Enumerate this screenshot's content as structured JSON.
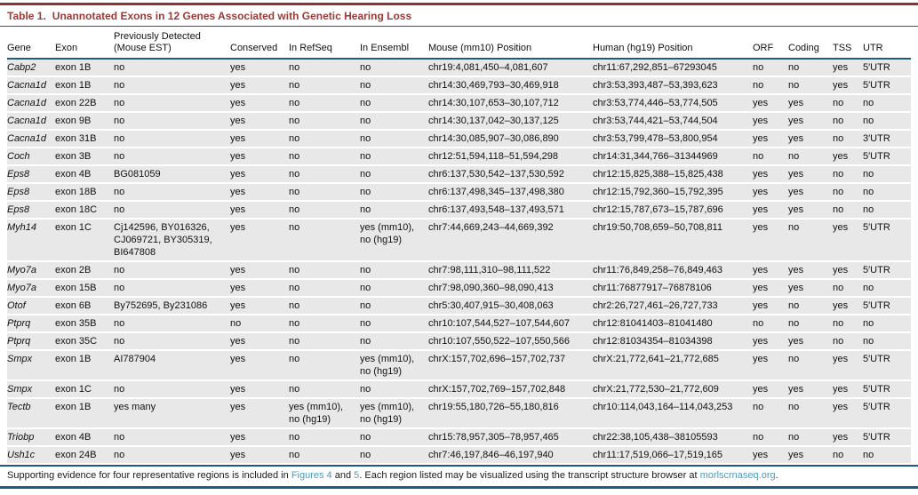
{
  "title": {
    "label": "Table 1.",
    "text": "Unannotated Exons in 12 Genes Associated with Genetic Hearing Loss"
  },
  "table": {
    "columns": [
      "Gene",
      "Exon",
      "Previously Detected (Mouse EST)",
      "Conserved",
      "In RefSeq",
      "In Ensembl",
      "Mouse (mm10) Position",
      "Human (hg19) Position",
      "ORF",
      "Coding",
      "TSS",
      "UTR"
    ],
    "column_keys": [
      "gene",
      "exon",
      "prev-detected",
      "conserved",
      "in-refseq",
      "in-ensembl",
      "mouse-position",
      "human-position",
      "orf",
      "coding",
      "tss",
      "utr"
    ],
    "rows": [
      [
        "Cabp2",
        "exon 1B",
        "no",
        "yes",
        "no",
        "no",
        "chr19:4,081,450–4,081,607",
        "chr11:67,292,851–67293045",
        "no",
        "no",
        "yes",
        "5′UTR"
      ],
      [
        "Cacna1d",
        "exon 1B",
        "no",
        "yes",
        "no",
        "no",
        "chr14:30,469,793–30,469,918",
        "chr3:53,393,487–53,393,623",
        "no",
        "no",
        "yes",
        "5′UTR"
      ],
      [
        "Cacna1d",
        "exon 22B",
        "no",
        "yes",
        "no",
        "no",
        "chr14:30,107,653–30,107,712",
        "chr3:53,774,446–53,774,505",
        "yes",
        "yes",
        "no",
        "no"
      ],
      [
        "Cacna1d",
        "exon 9B",
        "no",
        "yes",
        "no",
        "no",
        "chr14:30,137,042–30,137,125",
        "chr3:53,744,421–53,744,504",
        "yes",
        "yes",
        "no",
        "no"
      ],
      [
        "Cacna1d",
        "exon 31B",
        "no",
        "yes",
        "no",
        "no",
        "chr14:30,085,907–30,086,890",
        "chr3:53,799,478–53,800,954",
        "yes",
        "yes",
        "no",
        "3′UTR"
      ],
      [
        "Coch",
        "exon 3B",
        "no",
        "yes",
        "no",
        "no",
        "chr12:51,594,118–51,594,298",
        "chr14:31,344,766–31344969",
        "no",
        "no",
        "yes",
        "5′UTR"
      ],
      [
        "Eps8",
        "exon 4B",
        "BG081059",
        "yes",
        "no",
        "no",
        "chr6:137,530,542–137,530,592",
        "chr12:15,825,388–15,825,438",
        "yes",
        "yes",
        "no",
        "no"
      ],
      [
        "Eps8",
        "exon 18B",
        "no",
        "yes",
        "no",
        "no",
        "chr6:137,498,345–137,498,380",
        "chr12:15,792,360–15,792,395",
        "yes",
        "yes",
        "no",
        "no"
      ],
      [
        "Eps8",
        "exon 18C",
        "no",
        "yes",
        "no",
        "no",
        "chr6:137,493,548–137,493,571",
        "chr12:15,787,673–15,787,696",
        "yes",
        "yes",
        "no",
        "no"
      ],
      [
        "Myh14",
        "exon 1C",
        "Cj142596, BY016326, CJ069721, BY305319, BI647808",
        "yes",
        "no",
        "yes (mm10), no (hg19)",
        "chr7:44,669,243–44,669,392",
        "chr19:50,708,659–50,708,811",
        "yes",
        "no",
        "yes",
        "5′UTR"
      ],
      [
        "Myo7a",
        "exon 2B",
        "no",
        "yes",
        "no",
        "no",
        "chr7:98,111,310–98,111,522",
        "chr11:76,849,258–76,849,463",
        "yes",
        "yes",
        "yes",
        "5′UTR"
      ],
      [
        "Myo7a",
        "exon 15B",
        "no",
        "yes",
        "no",
        "no",
        "chr7:98,090,360–98,090,413",
        "chr11:76877917–76878106",
        "yes",
        "yes",
        "no",
        "no"
      ],
      [
        "Otof",
        "exon 6B",
        "By752695, By231086",
        "yes",
        "no",
        "no",
        "chr5:30,407,915–30,408,063",
        "chr2:26,727,461–26,727,733",
        "yes",
        "no",
        "yes",
        "5′UTR"
      ],
      [
        "Ptprq",
        "exon 35B",
        "no",
        "no",
        "no",
        "no",
        "chr10:107,544,527–107,544,607",
        "chr12:81041403–81041480",
        "no",
        "no",
        "no",
        "no"
      ],
      [
        "Ptprq",
        "exon 35C",
        "no",
        "yes",
        "no",
        "no",
        "chr10:107,550,522–107,550,566",
        "chr12:81034354–81034398",
        "yes",
        "yes",
        "no",
        "no"
      ],
      [
        "Smpx",
        "exon 1B",
        "AI787904",
        "yes",
        "no",
        "yes (mm10), no (hg19)",
        "chrX:157,702,696–157,702,737",
        "chrX:21,772,641–21,772,685",
        "yes",
        "no",
        "yes",
        "5′UTR"
      ],
      [
        "Smpx",
        "exon 1C",
        "no",
        "yes",
        "no",
        "no",
        "chrX:157,702,769–157,702,848",
        "chrX:21,772,530–21,772,609",
        "yes",
        "yes",
        "yes",
        "5′UTR"
      ],
      [
        "Tectb",
        "exon 1B",
        "yes many",
        "yes",
        "yes (mm10), no (hg19)",
        "yes (mm10), no (hg19)",
        "chr19:55,180,726–55,180,816",
        "chr10:114,043,164–114,043,253",
        "no",
        "no",
        "yes",
        "5′UTR"
      ],
      [
        "Triobp",
        "exon 4B",
        "no",
        "yes",
        "no",
        "no",
        "chr15:78,957,305–78,957,465",
        "chr22:38,105,438–38105593",
        "no",
        "no",
        "yes",
        "5′UTR"
      ],
      [
        "Ush1c",
        "exon 24B",
        "no",
        "yes",
        "no",
        "no",
        "chr7:46,197,846–46,197,940",
        "chr11:17,519,066–17,519,165",
        "yes",
        "yes",
        "no",
        "no"
      ]
    ]
  },
  "footnote": {
    "part1": "Supporting evidence for four representative regions is included in ",
    "link1": "Figures 4",
    "part2": " and ",
    "link2": "5",
    "part3": ". Each region listed may be visualized using the transcript structure browser at ",
    "link3": "morlscrnaseq.org",
    "part4": "."
  },
  "colors": {
    "title_red": "#9b3a37",
    "rule_red": "#8c3432",
    "rule_navy": "#1f5c77",
    "row_gray": "#e8e8e8",
    "link_blue": "#4a9bc3"
  }
}
